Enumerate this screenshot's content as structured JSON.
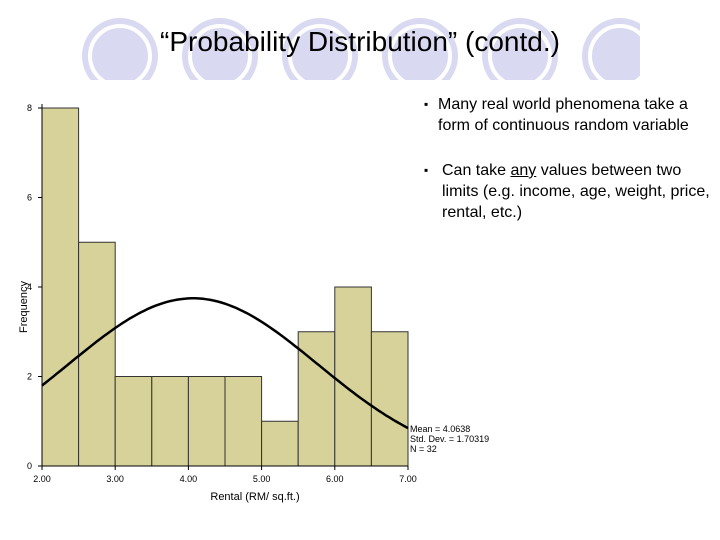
{
  "slide": {
    "title": "“Probability Distribution” (contd.)",
    "bullets": [
      {
        "marker": "▪",
        "text": "Many real world phenomena take a form of continuous random variable"
      },
      {
        "marker": "▪",
        "text": "Can take any values between two limits (e.g. income, age, weight, price, rental, etc.)",
        "underlined_word": "any"
      }
    ]
  },
  "stats": {
    "mean": "Mean = 4.0638",
    "std": "Std. Dev. = 1.70319",
    "n": "N = 32"
  },
  "colors": {
    "bar_fill": "#d6d29a",
    "bar_stroke": "#333333",
    "curve": "#000000",
    "deco_circle": "#d9d9f2"
  },
  "chart_data": {
    "type": "bar",
    "subtype": "histogram with normal curve",
    "xlabel": "Rental (RM/ sq.ft.)",
    "ylabel": "Frequency",
    "x_ticks": [
      "2.00",
      "3.00",
      "4.00",
      "5.00",
      "6.00",
      "7.00"
    ],
    "y_ticks": [
      "0",
      "2",
      "4",
      "6",
      "8"
    ],
    "xlim": [
      2.0,
      7.0
    ],
    "ylim": [
      0,
      8
    ],
    "bin_width": 0.5,
    "bins": [
      {
        "start": 2.0,
        "end": 2.5,
        "value": 8
      },
      {
        "start": 2.5,
        "end": 3.0,
        "value": 5
      },
      {
        "start": 3.0,
        "end": 3.5,
        "value": 2
      },
      {
        "start": 3.5,
        "end": 4.0,
        "value": 2
      },
      {
        "start": 4.0,
        "end": 4.5,
        "value": 2
      },
      {
        "start": 4.5,
        "end": 5.0,
        "value": 2
      },
      {
        "start": 5.0,
        "end": 5.5,
        "value": 1
      },
      {
        "start": 5.5,
        "end": 6.0,
        "value": 3
      },
      {
        "start": 6.0,
        "end": 6.5,
        "value": 4
      },
      {
        "start": 6.5,
        "end": 7.0,
        "value": 3
      }
    ],
    "normal_curve": {
      "mean": 4.0638,
      "std": 1.70319,
      "n": 32
    },
    "grid": false
  }
}
